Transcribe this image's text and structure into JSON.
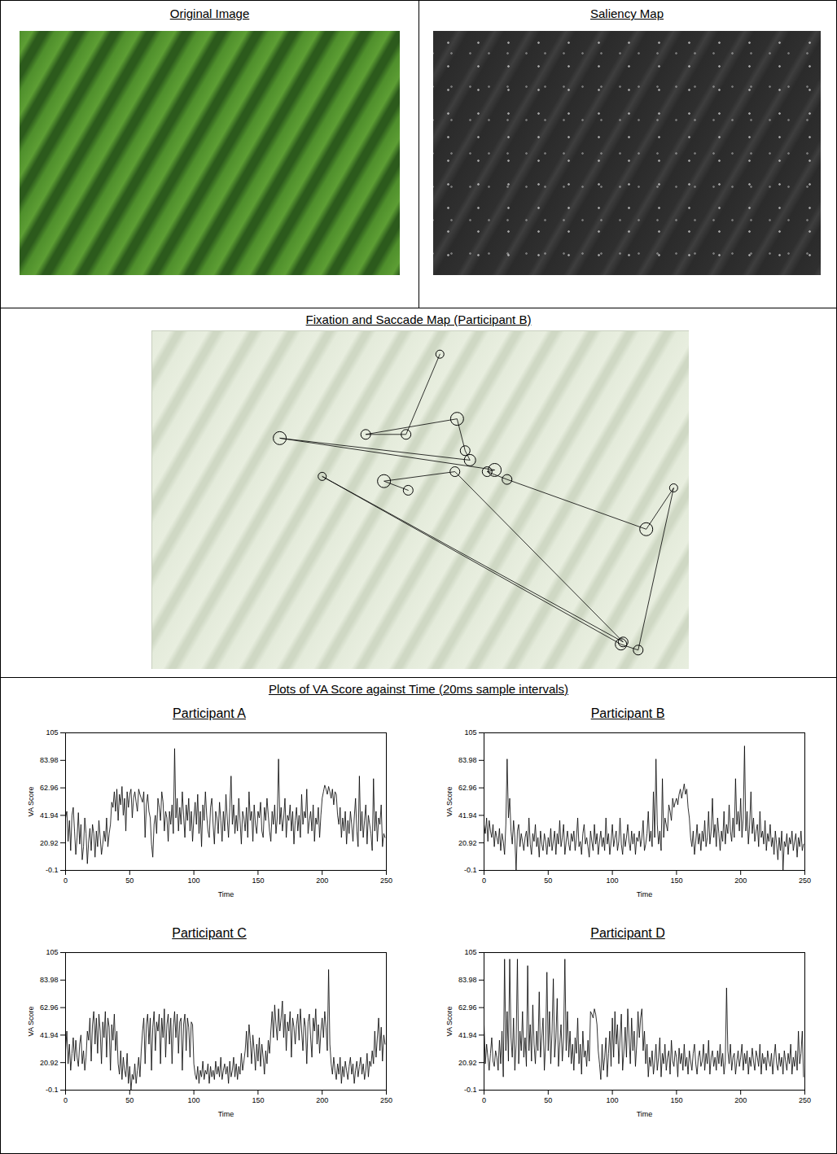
{
  "original_image": {
    "title": "Original Image"
  },
  "saliency_map": {
    "title": "Saliency Map"
  },
  "fixation_map": {
    "type": "scatter",
    "title": "Fixation and Saccade Map (Participant B)",
    "x": [
      53.6,
      47.3,
      39.8,
      56.8,
      58.3,
      59.2,
      23.8,
      63.8,
      62.4,
      66.1,
      92.0,
      97.1,
      90.5,
      87.3,
      31.7,
      87.7,
      56.4,
      43.2,
      47.7
    ],
    "y": [
      6.9,
      30.6,
      30.6,
      26.0,
      35.4,
      38.2,
      31.7,
      41.1,
      41.6,
      43.9,
      58.6,
      46.4,
      94.3,
      92.6,
      43.0,
      91.9,
      41.6,
      44.4,
      47.1
    ],
    "size": [
      5,
      6,
      6,
      8,
      6,
      7,
      8,
      8,
      6,
      6,
      8,
      5,
      6,
      7,
      5,
      6,
      6,
      8,
      6
    ],
    "xlim": [
      0,
      100
    ],
    "ylim": [
      100,
      0
    ],
    "tick_labels": false,
    "color": "#000000",
    "marker": "circle",
    "line_style": "solid"
  },
  "chart_data": {
    "type": "line",
    "title": "Plots of VA Score against Time (20ms sample intervals)",
    "x_label": "Time",
    "y_label": "VA Score",
    "xlim": [
      0,
      250
    ],
    "ylim": [
      -0.1,
      105
    ],
    "xticks": [
      0,
      50,
      100,
      150,
      200,
      250
    ],
    "yticks": [
      -0.1,
      20.92,
      41.94,
      62.96,
      83.98,
      105
    ],
    "grid": false,
    "x": [
      0,
      1,
      2,
      3,
      4,
      5,
      6,
      7,
      8,
      9,
      10,
      11,
      12,
      13,
      14,
      15,
      16,
      17,
      18,
      19,
      20,
      21,
      22,
      23,
      24,
      25,
      26,
      27,
      28,
      29,
      30,
      31,
      32,
      33,
      34,
      35,
      36,
      37,
      38,
      39,
      40,
      41,
      42,
      43,
      44,
      45,
      46,
      47,
      48,
      49,
      50,
      51,
      52,
      53,
      54,
      55,
      56,
      57,
      58,
      59,
      60,
      61,
      62,
      63,
      64,
      65,
      66,
      67,
      68,
      69,
      70,
      71,
      72,
      73,
      74,
      75,
      76,
      77,
      78,
      79,
      80,
      81,
      82,
      83,
      84,
      85,
      86,
      87,
      88,
      89,
      90,
      91,
      92,
      93,
      94,
      95,
      96,
      97,
      98,
      99,
      100,
      101,
      102,
      103,
      104,
      105,
      106,
      107,
      108,
      109,
      110,
      111,
      112,
      113,
      114,
      115,
      116,
      117,
      118,
      119,
      120,
      121,
      122,
      123,
      124,
      125,
      126,
      127,
      128,
      129,
      130,
      131,
      132,
      133,
      134,
      135,
      136,
      137,
      138,
      139,
      140,
      141,
      142,
      143,
      144,
      145,
      146,
      147,
      148,
      149,
      150,
      151,
      152,
      153,
      154,
      155,
      156,
      157,
      158,
      159,
      160,
      161,
      162,
      163,
      164,
      165,
      166,
      167,
      168,
      169,
      170,
      171,
      172,
      173,
      174,
      175,
      176,
      177,
      178,
      179,
      180,
      181,
      182,
      183,
      184,
      185,
      186,
      187,
      188,
      189,
      190,
      191,
      192,
      193,
      194,
      195,
      196,
      197,
      198,
      199,
      200,
      201,
      202,
      203,
      204,
      205,
      206,
      207,
      208,
      209,
      210,
      211,
      212,
      213,
      214,
      215,
      216,
      217,
      218,
      219,
      220,
      221,
      222,
      223,
      224,
      225,
      226,
      227,
      228,
      229,
      230,
      231,
      232,
      233,
      234,
      235,
      236,
      237,
      238,
      239,
      240,
      241,
      242,
      243,
      244,
      245,
      246,
      247,
      248,
      249
    ],
    "series": [
      {
        "name": "Participant A",
        "color": "#000000",
        "values": [
          40,
          45,
          22,
          38,
          15,
          42,
          48,
          30,
          12,
          25,
          44,
          20,
          35,
          8,
          18,
          40,
          28,
          5,
          22,
          32,
          15,
          35,
          28,
          10,
          30,
          18,
          38,
          25,
          12,
          20,
          30,
          22,
          40,
          18,
          28,
          35,
          52,
          48,
          60,
          45,
          62,
          38,
          58,
          50,
          64,
          42,
          55,
          30,
          60,
          48,
          58,
          62,
          40,
          55,
          60,
          52,
          45,
          62,
          58,
          55,
          52,
          60,
          25,
          50,
          58,
          45,
          40,
          20,
          10,
          35,
          42,
          28,
          55,
          48,
          38,
          60,
          52,
          30,
          45,
          40,
          22,
          45,
          35,
          50,
          28,
          93,
          40,
          55,
          30,
          48,
          35,
          60,
          42,
          25,
          50,
          38,
          55,
          30,
          45,
          22,
          40,
          52,
          35,
          58,
          28,
          45,
          18,
          50,
          38,
          60,
          42,
          30,
          25,
          48,
          55,
          35,
          20,
          45,
          40,
          28,
          52,
          38,
          22,
          45,
          30,
          58,
          40,
          25,
          48,
          72,
          35,
          50,
          28,
          42,
          30,
          55,
          38,
          20,
          45,
          40,
          30,
          48,
          25,
          60,
          38,
          45,
          22,
          50,
          35,
          28,
          45,
          40,
          52,
          30,
          25,
          48,
          38,
          55,
          42,
          30,
          22,
          45,
          35,
          50,
          28,
          40,
          85,
          35,
          48,
          30,
          40,
          55,
          25,
          42,
          38,
          50,
          30,
          45,
          20,
          38,
          48,
          30,
          42,
          25,
          58,
          35,
          45,
          40,
          62,
          28,
          38,
          45,
          30,
          50,
          22,
          40,
          35,
          48,
          25,
          42,
          55,
          60,
          65,
          62,
          58,
          64,
          60,
          55,
          62,
          50,
          60,
          58,
          42,
          35,
          48,
          25,
          40,
          30,
          45,
          20,
          38,
          28,
          45,
          35,
          22,
          40,
          55,
          30,
          18,
          72,
          30,
          45,
          25,
          38,
          50,
          20,
          42,
          35,
          28,
          15,
          70,
          30,
          45,
          22,
          40,
          35,
          50,
          18,
          28,
          25
        ]
      },
      {
        "name": "Participant B",
        "color": "#000000",
        "values": [
          35,
          28,
          40,
          22,
          38,
          30,
          25,
          35,
          18,
          30,
          25,
          20,
          32,
          15,
          28,
          22,
          12,
          35,
          85,
          40,
          55,
          30,
          20,
          38,
          25,
          -0.1,
          30,
          35,
          18,
          28,
          22,
          15,
          25,
          30,
          18,
          40,
          20,
          12,
          28,
          22,
          35,
          18,
          25,
          10,
          30,
          20,
          15,
          28,
          22,
          12,
          25,
          18,
          32,
          15,
          22,
          30,
          12,
          28,
          20,
          38,
          18,
          25,
          35,
          12,
          22,
          30,
          20,
          15,
          28,
          22,
          30,
          15,
          25,
          40,
          18,
          22,
          12,
          28,
          35,
          20,
          25,
          18,
          10,
          30,
          22,
          15,
          35,
          20,
          28,
          12,
          22,
          30,
          18,
          25,
          15,
          40,
          20,
          28,
          12,
          22,
          35,
          18,
          25,
          30,
          15,
          22,
          40,
          20,
          12,
          28,
          18,
          25,
          35,
          22,
          15,
          30,
          20,
          28,
          12,
          25,
          22,
          30,
          18,
          25,
          38,
          15,
          20,
          28,
          45,
          22,
          30,
          18,
          60,
          25,
          85,
          35,
          20,
          30,
          15,
          70,
          25,
          40,
          35,
          30,
          50,
          45,
          38,
          55,
          48,
          52,
          55,
          50,
          58,
          62,
          55,
          60,
          66,
          58,
          62,
          48,
          40,
          25,
          18,
          30,
          12,
          22,
          35,
          20,
          28,
          15,
          30,
          22,
          38,
          18,
          25,
          45,
          20,
          30,
          55,
          25,
          35,
          18,
          40,
          28,
          15,
          30,
          22,
          45,
          20,
          35,
          28,
          50,
          30,
          22,
          40,
          25,
          70,
          35,
          45,
          30,
          55,
          25,
          40,
          95,
          30,
          45,
          20,
          35,
          60,
          28,
          40,
          22,
          30,
          35,
          18,
          45,
          25,
          30,
          20,
          38,
          15,
          28,
          22,
          35,
          18,
          25,
          12,
          30,
          20,
          8,
          25,
          15,
          30,
          -0.1,
          22,
          18,
          28,
          12,
          25,
          20,
          30,
          15,
          22,
          28,
          10,
          25,
          18,
          30,
          15,
          20
        ]
      },
      {
        "name": "Participant C",
        "color": "#000000",
        "values": [
          30,
          45,
          20,
          35,
          15,
          28,
          40,
          22,
          38,
          25,
          18,
          35,
          42,
          20,
          30,
          15,
          25,
          45,
          38,
          55,
          22,
          50,
          60,
          35,
          55,
          28,
          58,
          45,
          20,
          52,
          40,
          60,
          25,
          55,
          48,
          15,
          50,
          38,
          58,
          30,
          45,
          20,
          12,
          30,
          8,
          25,
          15,
          10,
          28,
          5,
          18,
          -0.1,
          12,
          8,
          20,
          5,
          15,
          25,
          10,
          30,
          45,
          55,
          20,
          50,
          58,
          35,
          55,
          15,
          48,
          60,
          30,
          52,
          45,
          58,
          20,
          55,
          40,
          62,
          25,
          50,
          58,
          35,
          55,
          20,
          48,
          60,
          40,
          58,
          28,
          52,
          55,
          15,
          50,
          58,
          30,
          55,
          48,
          25,
          52,
          50,
          20,
          12,
          8,
          18,
          5,
          15,
          10,
          22,
          8,
          15,
          12,
          20,
          5,
          18,
          10,
          15,
          8,
          22,
          12,
          18,
          10,
          25,
          8,
          15,
          20,
          12,
          18,
          5,
          22,
          10,
          15,
          25,
          10,
          20,
          8,
          18,
          12,
          28,
          15,
          22,
          30,
          45,
          25,
          50,
          38,
          20,
          42,
          30,
          15,
          35,
          22,
          40,
          18,
          35,
          25,
          12,
          30,
          20,
          38,
          28,
          45,
          60,
          40,
          65,
          50,
          38,
          62,
          45,
          55,
          68,
          40,
          58,
          30,
          52,
          45,
          60,
          25,
          55,
          48,
          35,
          50,
          58,
          38,
          62,
          45,
          30,
          55,
          48,
          20,
          52,
          58,
          40,
          25,
          55,
          45,
          62,
          35,
          50,
          28,
          45,
          55,
          40,
          60,
          48,
          30,
          92,
          35,
          20,
          12,
          25,
          15,
          8,
          20,
          12,
          25,
          5,
          18,
          10,
          22,
          15,
          8,
          18,
          25,
          12,
          20,
          5,
          15,
          22,
          10,
          18,
          25,
          12,
          20,
          8,
          15,
          28,
          10,
          22,
          18,
          30,
          20,
          45,
          25,
          40,
          55,
          30,
          48,
          22,
          42,
          35
        ]
      },
      {
        "name": "Participant D",
        "color": "#000000",
        "values": [
          50,
          20,
          35,
          25,
          15,
          28,
          40,
          22,
          18,
          30,
          25,
          15,
          38,
          20,
          45,
          10,
          100,
          30,
          60,
          22,
          100,
          40,
          25,
          55,
          15,
          35,
          100,
          20,
          45,
          30,
          60,
          25,
          40,
          18,
          95,
          30,
          50,
          22,
          65,
          35,
          20,
          45,
          30,
          75,
          25,
          40,
          55,
          15,
          35,
          90,
          30,
          60,
          20,
          45,
          85,
          25,
          40,
          70,
          18,
          35,
          50,
          22,
          40,
          100,
          30,
          60,
          25,
          45,
          20,
          35,
          15,
          40,
          28,
          55,
          20,
          35,
          12,
          45,
          25,
          30,
          18,
          38,
          22,
          60,
          58,
          55,
          62,
          58,
          50,
          30,
          20,
          8,
          35,
          15,
          25,
          40,
          10,
          28,
          45,
          18,
          55,
          25,
          60,
          35,
          50,
          20,
          40,
          58,
          15,
          30,
          48,
          25,
          62,
          40,
          20,
          55,
          30,
          45,
          18,
          35,
          60,
          40,
          55,
          62,
          30,
          45,
          20,
          35,
          10,
          25,
          18,
          30,
          12,
          22,
          35,
          15,
          25,
          40,
          10,
          28,
          20,
          35,
          15,
          25,
          30,
          12,
          38,
          22,
          18,
          30,
          25,
          10,
          32,
          20,
          28,
          15,
          35,
          18,
          25,
          12,
          30,
          22,
          15,
          28,
          35,
          20,
          12,
          25,
          30,
          18,
          22,
          35,
          15,
          28,
          20,
          38,
          12,
          25,
          30,
          18,
          25,
          15,
          30,
          20,
          35,
          18,
          28,
          12,
          22,
          78,
          30,
          20,
          35,
          15,
          25,
          28,
          12,
          22,
          30,
          18,
          25,
          35,
          15,
          28,
          20,
          30,
          12,
          25,
          18,
          32,
          22,
          15,
          30,
          25,
          18,
          35,
          12,
          28,
          20,
          25,
          15,
          30,
          22,
          18,
          28,
          12,
          25,
          35,
          20,
          15,
          28,
          18,
          25,
          12,
          30,
          22,
          15,
          28,
          20,
          35,
          12,
          25,
          18,
          30,
          15,
          45,
          20,
          28,
          45,
          10
        ]
      }
    ]
  }
}
